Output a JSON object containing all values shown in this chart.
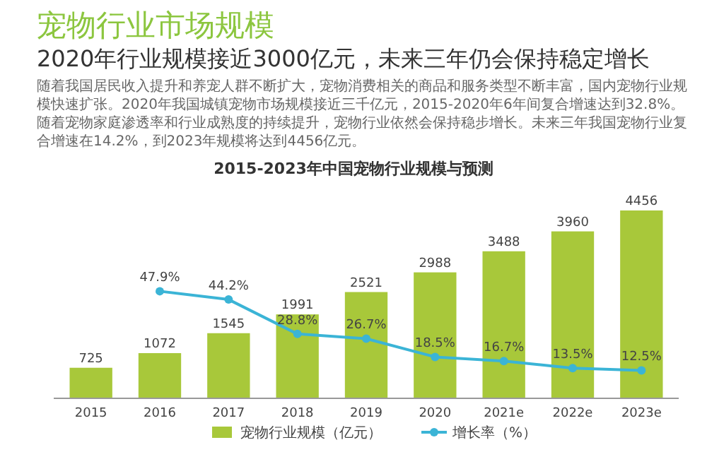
{
  "chart_data": {
    "type": "bar",
    "title": "宠物行业市场规模",
    "subtitle": "2020年行业规模接近3000亿元，未来三年仍会保持稳定增长",
    "annotations": [
      "随着我国居民收入提升和养宠人群不断扩大，宠物消费相关的商品和服务类型不断丰富，国内宠物行业规模快速扩张。2020年我国城镇宠物市场规模接近三千亿元，2015-2020年6年间复合增速达到32.8%。随着宠物家庭渗透率和行业成熟度的持续提升，宠物行业依然会保持稳步增长。未来三年我国宠物行业复合增速在14.2%，到2023年规模将达到4456亿元。",
      "2015-2023年中国宠物行业规模与预测"
    ],
    "categories": [
      "2015",
      "2016",
      "2017",
      "2018",
      "2019",
      "2020",
      "2021e",
      "2022e",
      "2023e"
    ],
    "legend": "bottom",
    "series": [
      {
        "name": "宠物行业规模（亿元）",
        "color": "#a8c83a",
        "values": [
          725,
          1072,
          1545,
          1991,
          2521,
          2988,
          3488,
          3960,
          4456
        ],
        "value_labels": [
          "725",
          "1072",
          "1545",
          "1991",
          "2521",
          "2988",
          "3488",
          "3960",
          "4456"
        ]
      },
      {
        "name": "增长率（%）",
        "type": "line",
        "axis": "y2",
        "marker": "circle",
        "color": "#3bb4d6",
        "values": [
          null,
          47.9,
          44.2,
          28.8,
          26.7,
          18.5,
          16.7,
          13.5,
          12.5
        ],
        "value_labels": [
          null,
          "47.9%",
          "44.2%",
          "28.8%",
          "26.7%",
          "18.5%",
          "16.7%",
          "13.5%",
          "12.5%"
        ]
      }
    ]
  }
}
